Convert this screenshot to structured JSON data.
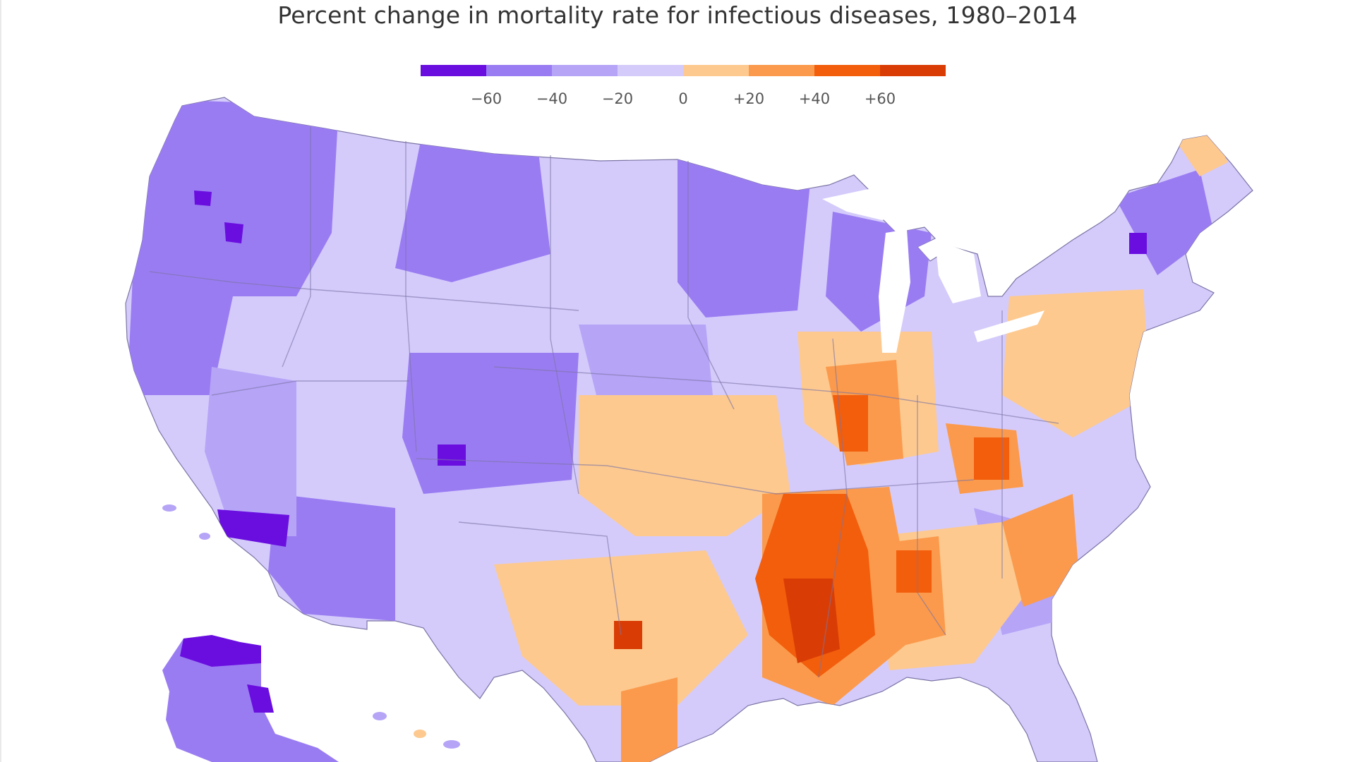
{
  "title": "Percent change in mortality rate for infectious diseases, 1980–2014",
  "legend": {
    "colors": [
      "#6a0ee0",
      "#9a7cf2",
      "#b6a4f7",
      "#d4cbfb",
      "#fdc98f",
      "#fb9a4c",
      "#f25e0c",
      "#d93d05"
    ],
    "ticks": [
      "−60",
      "−40",
      "−20",
      "0",
      "+20",
      "+40",
      "+60"
    ]
  },
  "palette": {
    "strong_decrease": "#6a0ee0",
    "decrease": "#9a7cf2",
    "mild_decrease": "#b6a4f7",
    "slight_decrease": "#d4cbfb",
    "slight_increase": "#fdc98f",
    "increase": "#fb9a4c",
    "strong_increase": "#f25e0c",
    "very_strong_increase": "#d93d05",
    "state_border": "#7c75a5"
  }
}
